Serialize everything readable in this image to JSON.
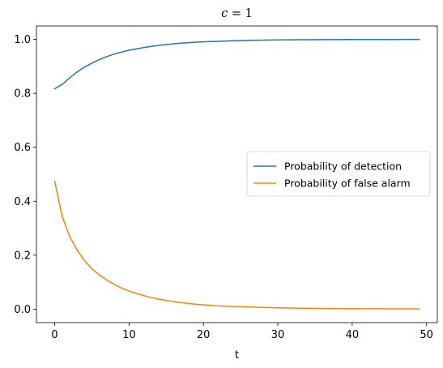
{
  "chart_data": {
    "type": "line",
    "title_var": "c",
    "title_op": " = ",
    "title_val": "1",
    "xlabel": "t",
    "ylabel": "",
    "xlim": [
      -2.45,
      51.45
    ],
    "ylim": [
      -0.05,
      1.05
    ],
    "xticks": [
      0,
      10,
      20,
      30,
      40,
      50
    ],
    "yticks": [
      0.0,
      0.2,
      0.4,
      0.6,
      0.8,
      1.0
    ],
    "grid": false,
    "legend_position": "center-right",
    "series": [
      {
        "name": "Probability of detection",
        "color": "#1f77b4",
        "x": [
          0,
          1,
          2,
          3,
          4,
          5,
          6,
          7,
          8,
          9,
          10,
          11,
          12,
          13,
          14,
          15,
          16,
          17,
          18,
          19,
          20,
          21,
          22,
          23,
          24,
          25,
          26,
          27,
          28,
          29,
          30,
          31,
          32,
          33,
          34,
          35,
          36,
          37,
          38,
          39,
          40,
          41,
          42,
          43,
          44,
          45,
          46,
          47,
          48,
          49
        ],
        "y": [
          0.817,
          0.833,
          0.857,
          0.879,
          0.897,
          0.912,
          0.925,
          0.936,
          0.946,
          0.953,
          0.96,
          0.965,
          0.97,
          0.974,
          0.978,
          0.981,
          0.984,
          0.986,
          0.988,
          0.99,
          0.991,
          0.992,
          0.993,
          0.994,
          0.995,
          0.996,
          0.9965,
          0.997,
          0.9974,
          0.9978,
          0.9981,
          0.9984,
          0.9986,
          0.9988,
          0.999,
          0.9991,
          0.9992,
          0.9993,
          0.9994,
          0.9995,
          0.9996,
          0.9996,
          0.9997,
          0.9997,
          0.9998,
          0.9998,
          0.9998,
          0.9999,
          0.9999,
          0.9999
        ]
      },
      {
        "name": "Probability of false alarm",
        "color": "#ff7f0e",
        "x": [
          0,
          1,
          2,
          3,
          4,
          5,
          6,
          7,
          8,
          9,
          10,
          11,
          12,
          13,
          14,
          15,
          16,
          17,
          18,
          19,
          20,
          21,
          22,
          23,
          24,
          25,
          26,
          27,
          28,
          29,
          30,
          31,
          32,
          33,
          34,
          35,
          36,
          37,
          38,
          39,
          40,
          41,
          42,
          43,
          44,
          45,
          46,
          47,
          48,
          49
        ],
        "y": [
          0.475,
          0.345,
          0.27,
          0.22,
          0.18,
          0.15,
          0.127,
          0.108,
          0.092,
          0.078,
          0.067,
          0.058,
          0.05,
          0.043,
          0.037,
          0.032,
          0.028,
          0.024,
          0.021,
          0.018,
          0.016,
          0.014,
          0.012,
          0.011,
          0.01,
          0.009,
          0.008,
          0.007,
          0.006,
          0.0055,
          0.005,
          0.0045,
          0.004,
          0.0035,
          0.0032,
          0.0029,
          0.0026,
          0.0024,
          0.0022,
          0.002,
          0.0018,
          0.0016,
          0.0015,
          0.0014,
          0.0013,
          0.0012,
          0.0011,
          0.001,
          0.0009,
          0.0008
        ]
      }
    ]
  }
}
